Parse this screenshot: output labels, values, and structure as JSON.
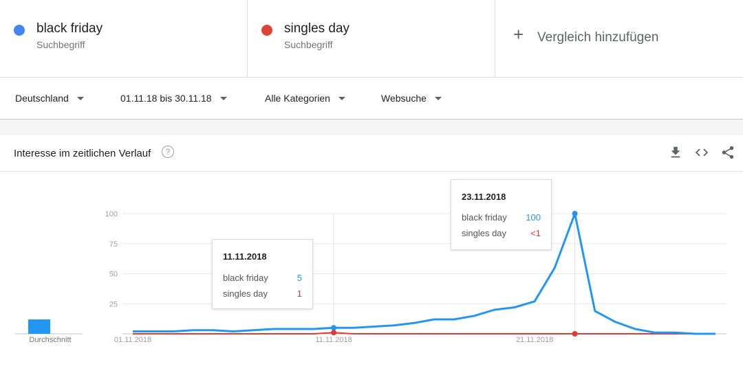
{
  "terms": [
    {
      "name": "black friday",
      "type": "Suchbegriff",
      "color": "#4285f4"
    },
    {
      "name": "singles day",
      "type": "Suchbegriff",
      "color": "#db4437"
    }
  ],
  "add_compare": {
    "label": "Vergleich hinzufügen",
    "icon": "plus-icon"
  },
  "filters": {
    "region": "Deutschland",
    "date_range": "01.11.18 bis 30.11.18",
    "category": "Alle Kategorien",
    "search_type": "Websuche"
  },
  "panel": {
    "title": "Interesse im zeitlichen Verlauf",
    "help_icon": "help-icon",
    "tools": [
      "download-icon",
      "embed-icon",
      "share-icon"
    ]
  },
  "average_label": "Durchschnitt",
  "tooltips": [
    {
      "date": "11.11.2018",
      "rows": [
        {
          "label": "black friday",
          "value": "5"
        },
        {
          "label": "singles day",
          "value": "1"
        }
      ]
    },
    {
      "date": "23.11.2018",
      "rows": [
        {
          "label": "black friday",
          "value": "100"
        },
        {
          "label": "singles day",
          "value": "<1"
        }
      ]
    }
  ],
  "chart_data": {
    "type": "line",
    "x": [
      "01.11.2018",
      "02.11.2018",
      "03.11.2018",
      "04.11.2018",
      "05.11.2018",
      "06.11.2018",
      "07.11.2018",
      "08.11.2018",
      "09.11.2018",
      "10.11.2018",
      "11.11.2018",
      "12.11.2018",
      "13.11.2018",
      "14.11.2018",
      "15.11.2018",
      "16.11.2018",
      "17.11.2018",
      "18.11.2018",
      "19.11.2018",
      "20.11.2018",
      "21.11.2018",
      "22.11.2018",
      "23.11.2018",
      "24.11.2018",
      "25.11.2018",
      "26.11.2018",
      "27.11.2018",
      "28.11.2018",
      "29.11.2018",
      "30.11.2018"
    ],
    "x_tick_labels": [
      "01.11.2018",
      "11.11.2018",
      "21.11.2018"
    ],
    "ylim": [
      0,
      100
    ],
    "y_ticks": [
      "25",
      "50",
      "75",
      "100"
    ],
    "series": [
      {
        "name": "black friday",
        "color": "#2196f3",
        "values": [
          2,
          2,
          2,
          3,
          3,
          2,
          3,
          4,
          4,
          4,
          5,
          5,
          6,
          7,
          9,
          12,
          12,
          15,
          20,
          22,
          27,
          55,
          100,
          19,
          10,
          4,
          1,
          1,
          0,
          0
        ]
      },
      {
        "name": "singles day",
        "color": "#e53935",
        "values": [
          0,
          0,
          0,
          0,
          0,
          0,
          0,
          0,
          0,
          0,
          1,
          0,
          0,
          0,
          0,
          0,
          0,
          0,
          0,
          0,
          0,
          0,
          0,
          0,
          0,
          0,
          0,
          0,
          0,
          0
        ]
      }
    ],
    "average_bar": {
      "series": "black friday",
      "color": "#2196f3"
    },
    "grid": true
  }
}
